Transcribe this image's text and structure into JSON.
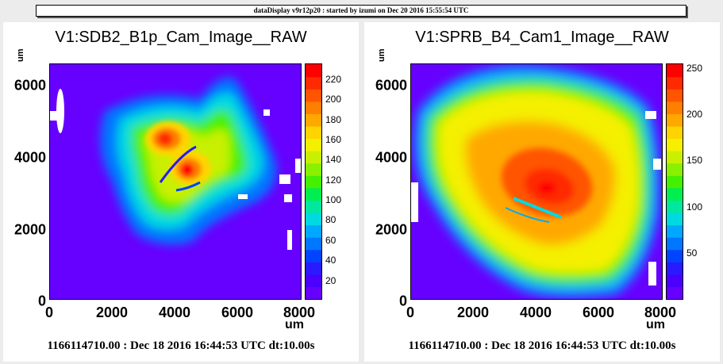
{
  "header": {
    "text": "dataDisplay v9r12p20 : started by izumi on Dec 20 2016 15:55:54 UTC"
  },
  "panels": [
    {
      "title": "V1:SDB2_B1p_Cam_Image__RAW",
      "y_unit": "um",
      "x_unit": "um",
      "y_ticks": [
        "6000",
        "4000",
        "2000",
        "0"
      ],
      "x_ticks": [
        "0",
        "2000",
        "4000",
        "6000",
        "8000"
      ],
      "color_ticks": [
        "220",
        "200",
        "180",
        "160",
        "140",
        "120",
        "100",
        "80",
        "60",
        "40",
        "20"
      ],
      "color_range": [
        0,
        235
      ],
      "footer": "1166114710.00 : Dec 18 2016 16:44:53 UTC dt:10.00s"
    },
    {
      "title": "V1:SPRB_B4_Cam1_Image__RAW",
      "y_unit": "um",
      "x_unit": "um",
      "y_ticks": [
        "6000",
        "4000",
        "2000",
        "0"
      ],
      "x_ticks": [
        "0",
        "2000",
        "4000",
        "6000",
        "8000"
      ],
      "color_ticks": [
        "250",
        "200",
        "150",
        "100",
        "50"
      ],
      "color_range": [
        0,
        255
      ],
      "footer": "1166114710.00 : Dec 18 2016 16:44:53 UTC dt:10.00s"
    }
  ],
  "palette": [
    "#6600ff",
    "#4b00ff",
    "#2a1aff",
    "#0044ff",
    "#0077ff",
    "#00a8ff",
    "#00d9e0",
    "#00e8a0",
    "#00ee50",
    "#44f000",
    "#88f000",
    "#c8f000",
    "#f4f000",
    "#ffd400",
    "#ffa800",
    "#ff7f00",
    "#ff5500",
    "#ff2a00",
    "#ff0000"
  ]
}
